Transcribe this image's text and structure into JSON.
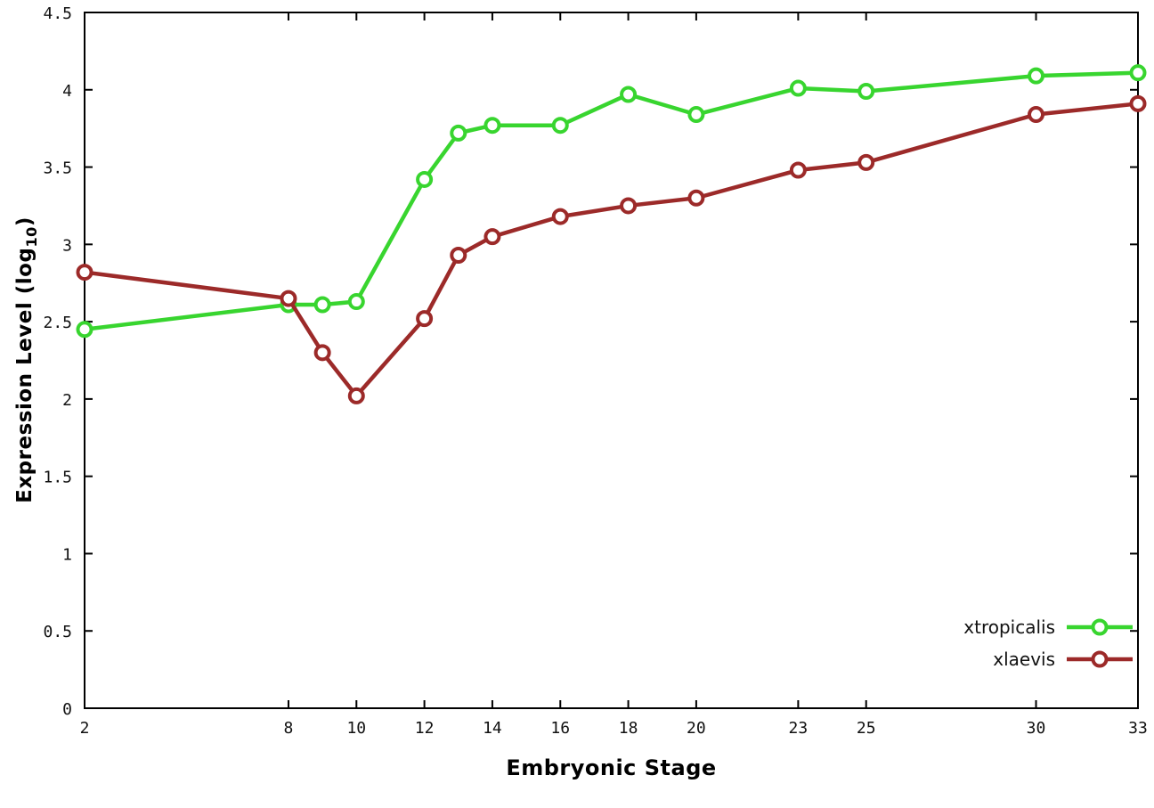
{
  "chart_data": {
    "type": "line",
    "title": "",
    "xlabel": "Embryonic Stage",
    "ylabel": {
      "prefix": "Expression Level (log",
      "sub": "10",
      "suffix": ")"
    },
    "x": [
      2,
      8,
      9,
      10,
      12,
      13,
      14,
      16,
      18,
      20,
      23,
      25,
      30,
      33
    ],
    "series": [
      {
        "name": "xtropicalis",
        "color": "#38d52f",
        "values": [
          2.45,
          2.61,
          2.61,
          2.63,
          3.42,
          3.72,
          3.77,
          3.77,
          3.97,
          3.84,
          4.01,
          3.99,
          4.09,
          4.11
        ]
      },
      {
        "name": "xlaevis",
        "color": "#9c2a29",
        "values": [
          2.82,
          2.65,
          2.3,
          2.02,
          2.52,
          2.93,
          3.05,
          3.18,
          3.25,
          3.3,
          3.48,
          3.53,
          3.84,
          3.91
        ]
      }
    ],
    "xlim": [
      2,
      33
    ],
    "ylim": [
      0,
      4.5
    ],
    "xticks": [
      2,
      8,
      10,
      12,
      14,
      16,
      18,
      20,
      23,
      25,
      30,
      33
    ],
    "yticks": [
      0,
      0.5,
      1,
      1.5,
      2,
      2.5,
      3,
      3.5,
      4,
      4.5
    ],
    "grid": false,
    "legend_position": "bottom-right-inside",
    "marker": "open-circle",
    "background": "#ffffff",
    "border_color": "#000000"
  }
}
